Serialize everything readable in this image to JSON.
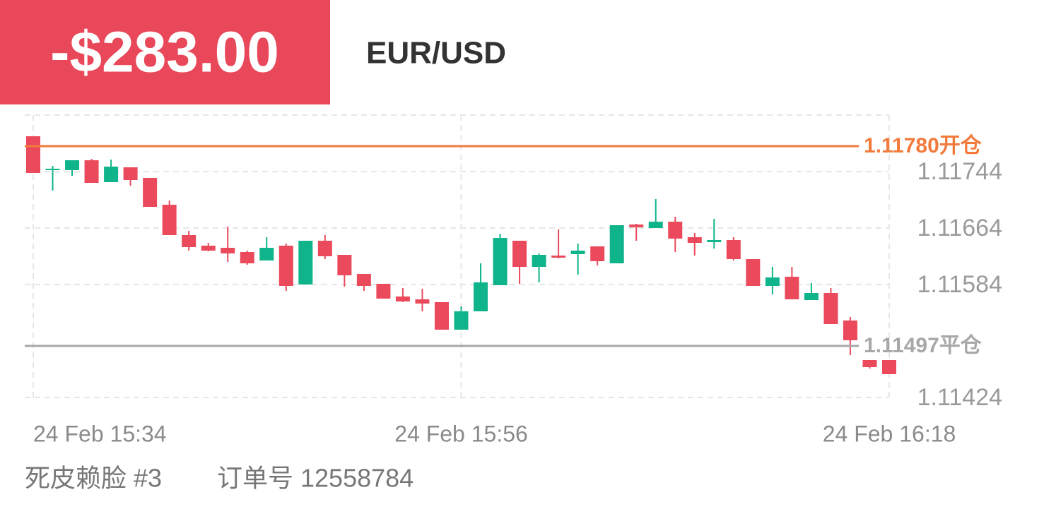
{
  "header": {
    "pnl": "-$283.00",
    "symbol": "EUR/USD"
  },
  "chart_data": {
    "type": "candlestick",
    "categories": [
      "24 Feb 15:34",
      null,
      null,
      null,
      null,
      null,
      null,
      null,
      null,
      null,
      null,
      null,
      null,
      null,
      null,
      null,
      null,
      null,
      null,
      null,
      null,
      null,
      "24 Feb 15:56",
      null,
      null,
      null,
      null,
      null,
      null,
      null,
      null,
      null,
      null,
      null,
      null,
      null,
      null,
      null,
      null,
      null,
      null,
      null,
      null,
      null,
      "24 Feb 16:18"
    ],
    "open": [
      1.11794,
      1.11746,
      1.11746,
      1.1176,
      1.11729,
      1.1175,
      1.11735,
      1.11697,
      1.11654,
      1.11639,
      1.11636,
      1.1163,
      1.11618,
      1.11639,
      1.11584,
      1.11646,
      1.11626,
      1.11599,
      1.11585,
      1.11567,
      1.11563,
      1.11559,
      1.1152,
      1.11546,
      1.11583,
      1.11646,
      1.11609,
      1.11625,
      1.11627,
      1.11638,
      1.11614,
      1.11669,
      1.11664,
      1.11673,
      1.11651,
      1.11644,
      1.11647,
      1.1162,
      1.11582,
      1.11595,
      1.11562,
      1.11572,
      1.11533,
      1.11477,
      1.11477
    ],
    "high": [
      1.11794,
      1.11752,
      1.1176,
      1.11762,
      1.11761,
      1.1175,
      1.11735,
      1.11703,
      1.1166,
      1.11643,
      1.11666,
      1.11632,
      1.11651,
      1.11642,
      1.11646,
      1.11654,
      1.11626,
      1.11599,
      1.11585,
      1.11579,
      1.11578,
      1.11559,
      1.11553,
      1.11614,
      1.11656,
      1.11646,
      1.11628,
      1.11662,
      1.11642,
      1.11638,
      1.11668,
      1.1167,
      1.11705,
      1.1168,
      1.11657,
      1.11677,
      1.11651,
      1.1162,
      1.11609,
      1.11609,
      1.11586,
      1.11579,
      1.11538,
      1.11477,
      1.11477
    ],
    "low": [
      1.11742,
      1.11717,
      1.11738,
      1.11728,
      1.11729,
      1.11724,
      1.11694,
      1.11654,
      1.11632,
      1.11631,
      1.11616,
      1.11612,
      1.11618,
      1.11575,
      1.11584,
      1.1162,
      1.11581,
      1.11575,
      1.11564,
      1.11559,
      1.11546,
      1.1152,
      1.1152,
      1.11546,
      1.11583,
      1.11585,
      1.11587,
      1.11621,
      1.11598,
      1.11611,
      1.11614,
      1.11646,
      1.11664,
      1.1163,
      1.11625,
      1.11635,
      1.11618,
      1.11582,
      1.1157,
      1.11563,
      1.11562,
      1.11528,
      1.11484,
      1.11465,
      1.11457
    ],
    "close": [
      1.11742,
      1.11748,
      1.1176,
      1.11728,
      1.11751,
      1.11732,
      1.11694,
      1.11654,
      1.11637,
      1.11632,
      1.11628,
      1.11614,
      1.11636,
      1.11582,
      1.11646,
      1.11624,
      1.11597,
      1.11582,
      1.11564,
      1.1156,
      1.11557,
      1.1152,
      1.11546,
      1.11587,
      1.1165,
      1.11609,
      1.11626,
      1.11622,
      1.11632,
      1.11617,
      1.11668,
      1.11665,
      1.11673,
      1.11649,
      1.11643,
      1.11647,
      1.1162,
      1.11582,
      1.11594,
      1.11563,
      1.11572,
      1.11528,
      1.11505,
      1.11467,
      1.11457
    ],
    "up_color": "#10b48a",
    "down_color": "#eb4a5c",
    "ylim": [
      1.11424,
      1.11824
    ],
    "yticks": [
      1.11424,
      1.11584,
      1.11664,
      1.11744
    ],
    "grid": true,
    "lines": [
      {
        "value": 1.1178,
        "label": "1.11780开仓",
        "color": "#f27b3c"
      },
      {
        "value": 1.11497,
        "label": "1.11497平仓",
        "color": "#a8a8a8"
      }
    ]
  },
  "footer": {
    "account": "死皮赖脸 #3",
    "order": "订单号 12558784"
  }
}
